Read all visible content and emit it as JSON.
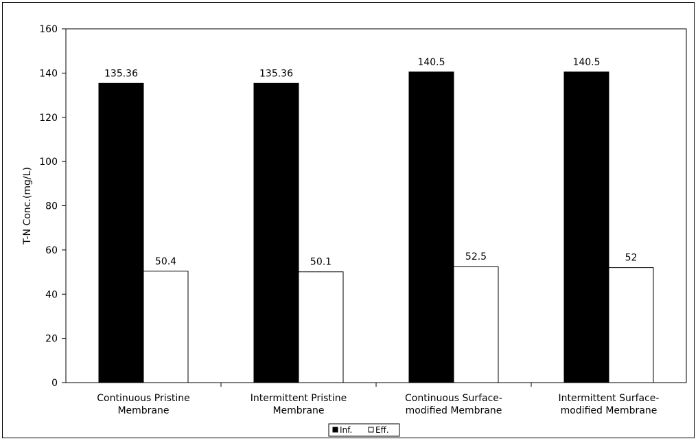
{
  "chart_data": {
    "type": "bar",
    "title": "",
    "xlabel": "",
    "ylabel": "T-N Conc.(mg/L)",
    "ylim": [
      0,
      160
    ],
    "yticks": [
      0,
      20,
      40,
      60,
      80,
      100,
      120,
      140,
      160
    ],
    "categories": [
      [
        "Continuous Pristine",
        "Membrane"
      ],
      [
        "Intermittent  Pristine",
        "Membrane"
      ],
      [
        "Continuous Surface-",
        "modified  Membrane"
      ],
      [
        "Intermittent  Surface-",
        "modified  Membrane"
      ]
    ],
    "series": [
      {
        "name": "Inf.",
        "color": "#000000",
        "values": [
          135.36,
          135.36,
          140.5,
          140.5
        ],
        "labels": [
          "135.36",
          "135.36",
          "140.5",
          "140.5"
        ]
      },
      {
        "name": "Eff.",
        "color": "#ffffff",
        "values": [
          50.4,
          50.1,
          52.5,
          52
        ],
        "labels": [
          "50.4",
          "50.1",
          "52.5",
          "52"
        ]
      }
    ],
    "legend_position": "bottom",
    "grid": false
  }
}
